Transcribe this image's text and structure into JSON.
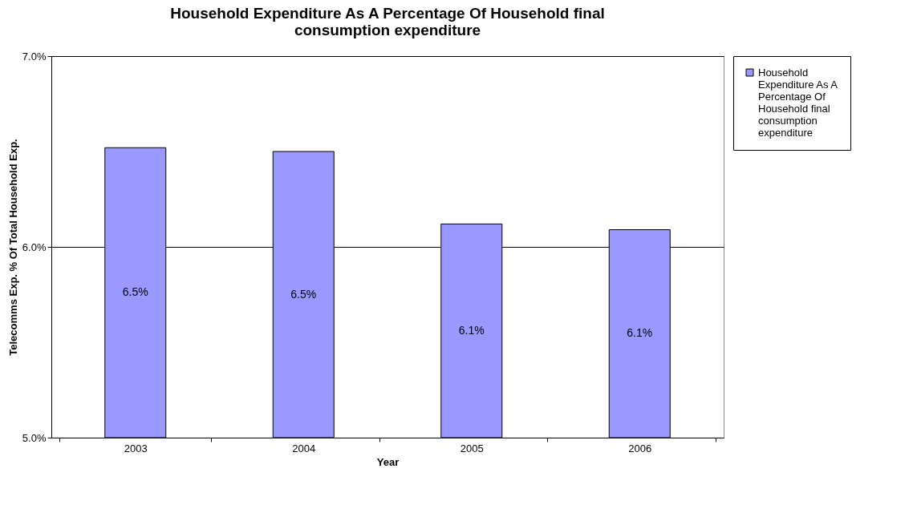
{
  "chart_data": {
    "type": "bar",
    "title": "Household Expenditure As A Percentage Of Household final consumption expenditure",
    "xlabel": "Year",
    "ylabel": "Telecomms Exp. % Of Total Household Exp.",
    "categories": [
      "2003",
      "2004",
      "2005",
      "2006"
    ],
    "series": [
      {
        "name": "Household Expenditure As A Percentage Of Household final consumption expenditure",
        "color": "#9999ff",
        "values": [
          6.52,
          6.5,
          6.12,
          6.09
        ],
        "value_labels": [
          "6.5%",
          "6.5%",
          "6.1%",
          "6.1%"
        ]
      }
    ],
    "ylim": [
      5.0,
      7.0
    ],
    "yticks": [
      {
        "value": 5.0,
        "label": "5.0%"
      },
      {
        "value": 6.0,
        "label": "6.0%"
      },
      {
        "value": 7.0,
        "label": "7.0%"
      }
    ],
    "grid": "y",
    "legend": "right"
  }
}
